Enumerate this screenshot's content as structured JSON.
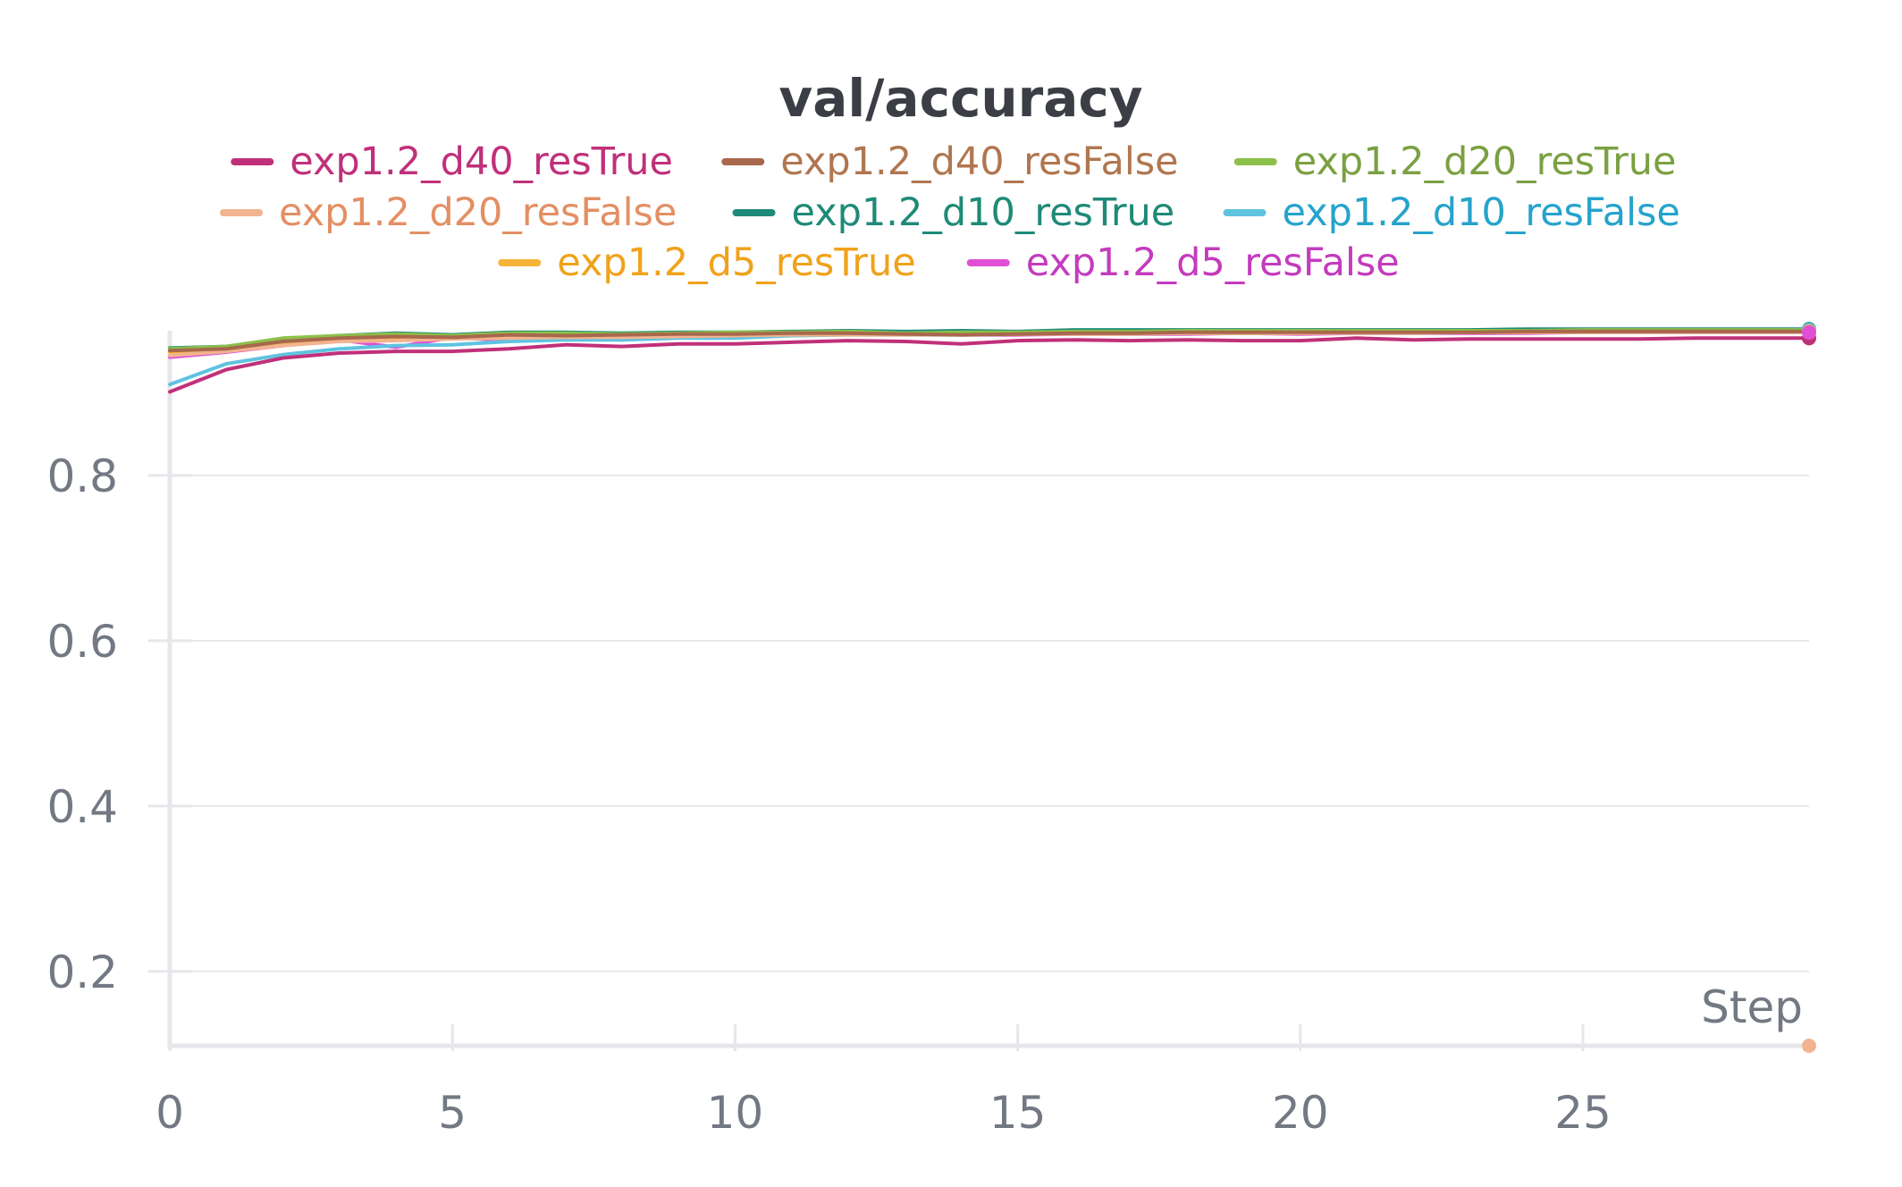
{
  "chart_data": {
    "type": "line",
    "title": "val/accuracy",
    "xlabel": "Step",
    "ylabel": "",
    "xlim": [
      0,
      29
    ],
    "ylim": [
      0.11,
      0.975
    ],
    "x_ticks": [
      0,
      5,
      10,
      15,
      20,
      25
    ],
    "y_ticks": [
      0.2,
      0.4,
      0.6,
      0.8
    ],
    "grid": "horizontal",
    "legend_position": "top",
    "x": [
      0,
      1,
      2,
      3,
      4,
      5,
      6,
      7,
      8,
      9,
      10,
      11,
      12,
      13,
      14,
      15,
      16,
      17,
      18,
      19,
      20,
      21,
      22,
      23,
      24,
      25,
      26,
      27,
      28,
      29
    ],
    "series": [
      {
        "name": "exp1.2_d40_resTrue",
        "color": "#c0307a",
        "text_color": "#c0307a",
        "values": [
          0.901,
          0.928,
          0.942,
          0.948,
          0.95,
          0.95,
          0.953,
          0.958,
          0.956,
          0.959,
          0.959,
          0.961,
          0.963,
          0.962,
          0.959,
          0.963,
          0.964,
          0.963,
          0.964,
          0.963,
          0.963,
          0.966,
          0.964,
          0.965,
          0.965,
          0.965,
          0.965,
          0.966,
          0.966,
          0.966
        ]
      },
      {
        "name": "exp1.2_d40_resFalse",
        "color": "#a8684c",
        "text_color": "#b0764f",
        "values": [
          0.951,
          0.953,
          0.962,
          0.966,
          0.968,
          0.967,
          0.97,
          0.969,
          0.97,
          0.971,
          0.971,
          0.972,
          0.972,
          0.971,
          0.97,
          0.971,
          0.972,
          0.972,
          0.973,
          0.973,
          0.973,
          0.973,
          0.973,
          0.973,
          0.974,
          0.974,
          0.974,
          0.974,
          0.974,
          0.974
        ]
      },
      {
        "name": "exp1.2_d20_resTrue",
        "color": "#8cc04a",
        "text_color": "#7ba042",
        "values": [
          0.953,
          0.956,
          0.966,
          0.969,
          0.971,
          0.969,
          0.972,
          0.972,
          0.971,
          0.972,
          0.973,
          0.973,
          0.974,
          0.972,
          0.973,
          0.973,
          0.974,
          0.974,
          0.975,
          0.975,
          0.975,
          0.975,
          0.975,
          0.975,
          0.975,
          0.976,
          0.976,
          0.976,
          0.976,
          0.976
        ]
      },
      {
        "name": "exp1.2_d20_resFalse",
        "color": "#f2b38f",
        "text_color": "#e38f63",
        "values": [
          0.945,
          0.95,
          0.957,
          0.962,
          0.963,
          0.965,
          0.966,
          0.967,
          0.967,
          0.968,
          0.969,
          0.97,
          0.97,
          0.97,
          0.97,
          0.971,
          0.971,
          0.971,
          0.972,
          0.972,
          0.972,
          0.972,
          0.972,
          0.973,
          0.973,
          0.973,
          0.973,
          0.973,
          0.973,
          0.973
        ]
      },
      {
        "name": "exp1.2_d10_resTrue",
        "color": "#1e8a78",
        "text_color": "#1e8a78",
        "values": [
          0.954,
          0.956,
          0.965,
          0.969,
          0.972,
          0.97,
          0.973,
          0.973,
          0.972,
          0.973,
          0.973,
          0.974,
          0.975,
          0.974,
          0.975,
          0.974,
          0.976,
          0.976,
          0.976,
          0.976,
          0.976,
          0.976,
          0.976,
          0.976,
          0.977,
          0.977,
          0.977,
          0.977,
          0.977,
          0.977
        ]
      },
      {
        "name": "exp1.2_d10_resFalse",
        "color": "#5fc3e0",
        "text_color": "#25a3cc",
        "values": [
          0.91,
          0.935,
          0.946,
          0.953,
          0.957,
          0.958,
          0.962,
          0.964,
          0.964,
          0.966,
          0.966,
          0.969,
          0.97,
          0.97,
          0.97,
          0.971,
          0.972,
          0.972,
          0.972,
          0.973,
          0.973,
          0.973,
          0.974,
          0.974,
          0.974,
          0.975,
          0.975,
          0.975,
          0.975,
          0.976
        ]
      },
      {
        "name": "exp1.2_d5_resTrue",
        "color": "#f5b53a",
        "text_color": "#f0a21a",
        "values": [
          0.949,
          0.954,
          0.961,
          0.966,
          0.967,
          0.966,
          0.968,
          0.969,
          0.969,
          0.97,
          0.97,
          0.971,
          0.971,
          0.972,
          0.971,
          0.971,
          0.972,
          0.972,
          0.972,
          0.972,
          0.972,
          0.973,
          0.973,
          0.973,
          0.973,
          0.973,
          0.974,
          0.974,
          0.974,
          0.974
        ]
      },
      {
        "name": "exp1.2_d5_resFalse",
        "color": "#e04fd6",
        "text_color": "#c43bbd",
        "values": [
          0.943,
          0.949,
          0.957,
          0.964,
          0.955,
          0.967,
          0.963,
          0.966,
          0.964,
          0.967,
          0.969,
          0.97,
          0.971,
          0.973,
          0.97,
          0.97,
          0.971,
          0.971,
          0.971,
          0.972,
          0.971,
          0.972,
          0.972,
          0.972,
          0.972,
          0.973,
          0.973,
          0.973,
          0.973,
          0.973
        ]
      }
    ]
  }
}
